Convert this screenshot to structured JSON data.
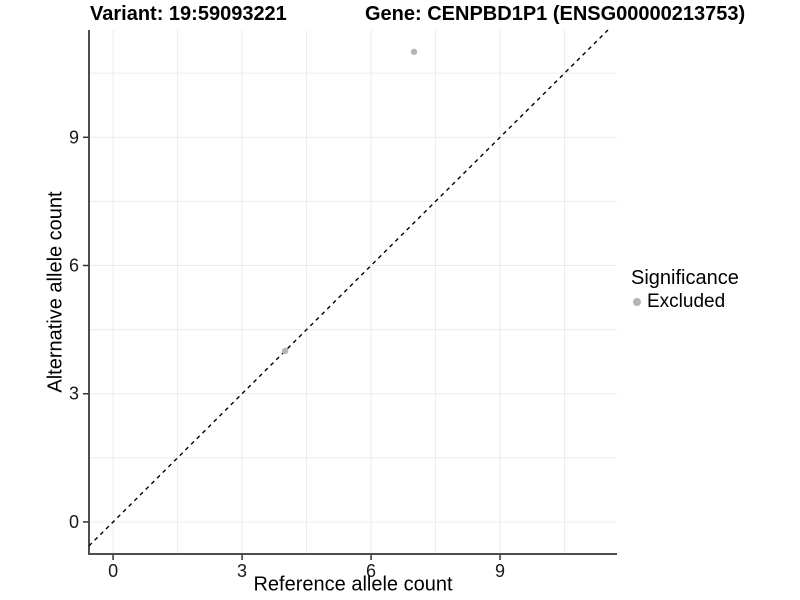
{
  "figure": {
    "title_left": "Variant: 19:59093221",
    "title_right": "Gene: CENPBD1P1 (ENSG00000213753)",
    "background": "#ffffff"
  },
  "chart_data": {
    "type": "scatter",
    "xlabel": "Reference allele count",
    "ylabel": "Alternative allele count",
    "xlim": [
      -0.56,
      11.72
    ],
    "ylim": [
      -0.75,
      11.51
    ],
    "x_ticks": [
      0,
      3,
      6,
      9
    ],
    "y_ticks": [
      0,
      3,
      6,
      9
    ],
    "x_minor": [
      1.5,
      4.5,
      7.5,
      10.5
    ],
    "y_minor": [
      1.5,
      4.5,
      7.5,
      10.5
    ],
    "grid": "major+minor",
    "reference_line": {
      "type": "identity",
      "style": "dashed",
      "color": "#000000"
    },
    "series": [
      {
        "name": "Excluded",
        "color": "#b5b5b5",
        "points": [
          [
            7,
            11
          ],
          [
            4,
            4
          ]
        ]
      }
    ],
    "legend": {
      "title": "Significance",
      "position": "right",
      "items": [
        {
          "label": "Excluded",
          "color": "#b5b5b5"
        }
      ]
    },
    "style": {
      "gridline_color": "#ececec",
      "axis_line_color": "#4d4d4d",
      "tick_mark_color": "#333333",
      "tick_label_color": "#1a1a1a",
      "tick_label_size": 18
    }
  }
}
